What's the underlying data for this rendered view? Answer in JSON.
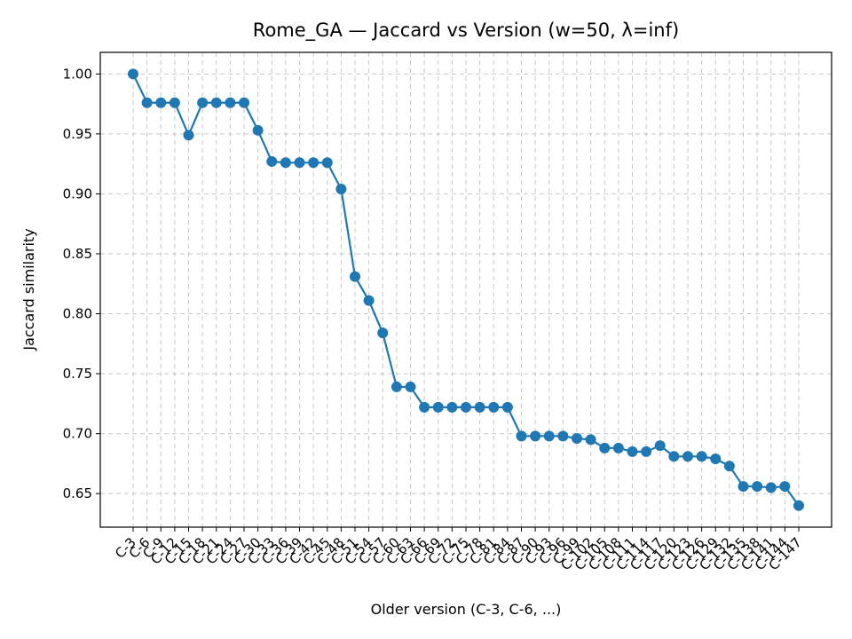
{
  "chart_data": {
    "type": "line",
    "title": "Rome_GA — Jaccard vs Version (w=50, λ=inf)",
    "xlabel": "Older version (C-3, C-6, ...)",
    "ylabel": "Jaccard similarity",
    "grid": true,
    "ylim": [
      0.622,
      1.018
    ],
    "yticks": [
      "0.65",
      "0.70",
      "0.75",
      "0.80",
      "0.85",
      "0.90",
      "0.95",
      "1.00"
    ],
    "color": "#1f77b4",
    "categories": [
      "C-3",
      "C-6",
      "C-9",
      "C-12",
      "C-15",
      "C-18",
      "C-21",
      "C-24",
      "C-27",
      "C-30",
      "C-33",
      "C-36",
      "C-39",
      "C-42",
      "C-45",
      "C-48",
      "C-51",
      "C-54",
      "C-57",
      "C-60",
      "C-63",
      "C-66",
      "C-69",
      "C-72",
      "C-75",
      "C-78",
      "C-81",
      "C-84",
      "C-87",
      "C-90",
      "C-93",
      "C-96",
      "C-99",
      "C-102",
      "C-105",
      "C-108",
      "C-111",
      "C-114",
      "C-117",
      "C-120",
      "C-123",
      "C-126",
      "C-129",
      "C-132",
      "C-135",
      "C-138",
      "C-141",
      "C-144",
      "C-147"
    ],
    "values": [
      1.0,
      0.976,
      0.976,
      0.976,
      0.949,
      0.976,
      0.976,
      0.976,
      0.976,
      0.953,
      0.927,
      0.926,
      0.926,
      0.926,
      0.926,
      0.904,
      0.831,
      0.811,
      0.784,
      0.739,
      0.739,
      0.722,
      0.722,
      0.722,
      0.722,
      0.722,
      0.722,
      0.722,
      0.698,
      0.698,
      0.698,
      0.698,
      0.696,
      0.695,
      0.688,
      0.688,
      0.685,
      0.685,
      0.69,
      0.681,
      0.681,
      0.681,
      0.679,
      0.673,
      0.656,
      0.656,
      0.655,
      0.656,
      0.64
    ]
  }
}
